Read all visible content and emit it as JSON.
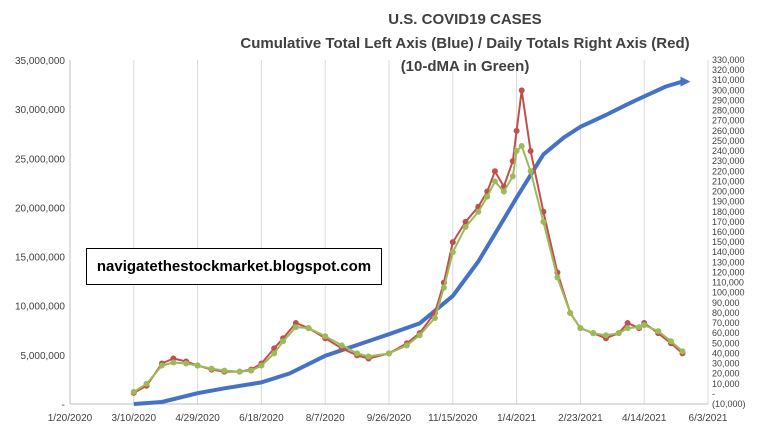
{
  "chart_data": {
    "type": "line",
    "title_lines": [
      "U.S. COVID19 CASES",
      "Cumulative Total Left Axis (Blue) / Daily Totals Right Axis (Red)",
      "(10-dMA in Green)"
    ],
    "watermark": "navigatethestockmarket.blogspot.com",
    "x_ticks": [
      "1/20/2020",
      "3/10/2020",
      "4/29/2020",
      "6/18/2020",
      "8/7/2020",
      "9/26/2020",
      "11/15/2020",
      "1/4/2021",
      "2/23/2021",
      "4/14/2021",
      "6/3/2021"
    ],
    "left_axis": {
      "ylim": [
        0,
        35000000
      ],
      "tick_labels": [
        "-",
        "5,000,000",
        "10,000,000",
        "15,000,000",
        "20,000,000",
        "25,000,000",
        "30,000,000",
        "35,000,000"
      ]
    },
    "right_axis": {
      "ylim": [
        -10000,
        330000
      ],
      "tick_labels": [
        "(10,000)",
        "-",
        "10,000",
        "20,000",
        "30,000",
        "40,000",
        "50,000",
        "60,000",
        "70,000",
        "80,000",
        "90,000",
        "100,000",
        "110,000",
        "120,000",
        "130,000",
        "140,000",
        "150,000",
        "160,000",
        "170,000",
        "180,000",
        "190,000",
        "200,000",
        "210,000",
        "220,000",
        "230,000",
        "240,000",
        "250,000",
        "260,000",
        "270,000",
        "280,000",
        "290,000",
        "300,000",
        "310,000",
        "320,000",
        "330,000"
      ]
    },
    "series": [
      {
        "name": "Cumulative Total",
        "axis": "left",
        "color": "#4472C4",
        "x": [
          "3/10/2020",
          "4/1/2020",
          "4/29/2020",
          "5/20/2020",
          "6/18/2020",
          "7/10/2020",
          "8/7/2020",
          "9/1/2020",
          "9/26/2020",
          "10/20/2020",
          "11/15/2020",
          "12/5/2020",
          "12/25/2020",
          "1/4/2021",
          "1/25/2021",
          "2/10/2021",
          "2/23/2021",
          "3/15/2021",
          "4/1/2021",
          "4/14/2021",
          "5/1/2021",
          "5/14/2021"
        ],
        "values": [
          0,
          200000,
          1100000,
          1600000,
          2200000,
          3100000,
          4900000,
          6000000,
          7100000,
          8200000,
          11000000,
          14500000,
          18800000,
          21000000,
          25400000,
          27100000,
          28200000,
          29400000,
          30500000,
          31300000,
          32300000,
          32800000
        ]
      },
      {
        "name": "Daily Totals",
        "axis": "right",
        "color": "#C0504D",
        "x": [
          "3/10/2020",
          "3/20/2020",
          "4/1/2020",
          "4/10/2020",
          "4/20/2020",
          "4/29/2020",
          "5/10/2020",
          "5/20/2020",
          "6/1/2020",
          "6/10/2020",
          "6/18/2020",
          "6/28/2020",
          "7/5/2020",
          "7/15/2020",
          "7/25/2020",
          "8/7/2020",
          "8/20/2020",
          "9/1/2020",
          "9/10/2020",
          "9/26/2020",
          "10/10/2020",
          "10/20/2020",
          "11/1/2020",
          "11/8/2020",
          "11/15/2020",
          "11/25/2020",
          "12/5/2020",
          "12/12/2020",
          "12/18/2020",
          "12/25/2020",
          "1/1/2021",
          "1/4/2021",
          "1/8/2021",
          "1/15/2021",
          "1/25/2021",
          "2/5/2021",
          "2/15/2021",
          "2/23/2021",
          "3/5/2021",
          "3/15/2021",
          "3/25/2021",
          "4/1/2021",
          "4/10/2021",
          "4/14/2021",
          "4/25/2021",
          "5/5/2021",
          "5/14/2021"
        ],
        "values": [
          1000,
          8000,
          30000,
          35000,
          32000,
          28000,
          24000,
          22000,
          22000,
          24000,
          30000,
          45000,
          55000,
          70000,
          65000,
          55000,
          45000,
          38000,
          35000,
          40000,
          50000,
          60000,
          80000,
          110000,
          150000,
          170000,
          185000,
          200000,
          220000,
          205000,
          230000,
          260000,
          300000,
          240000,
          180000,
          120000,
          80000,
          65000,
          60000,
          55000,
          60000,
          70000,
          65000,
          70000,
          60000,
          50000,
          40000
        ]
      },
      {
        "name": "10-dMA",
        "axis": "right",
        "color": "#9BBB59",
        "x": [
          "3/10/2020",
          "3/20/2020",
          "4/1/2020",
          "4/10/2020",
          "4/20/2020",
          "4/29/2020",
          "5/10/2020",
          "5/20/2020",
          "6/1/2020",
          "6/10/2020",
          "6/18/2020",
          "6/28/2020",
          "7/5/2020",
          "7/15/2020",
          "7/25/2020",
          "8/7/2020",
          "8/20/2020",
          "9/1/2020",
          "9/10/2020",
          "9/26/2020",
          "10/10/2020",
          "10/20/2020",
          "11/1/2020",
          "11/8/2020",
          "11/15/2020",
          "11/25/2020",
          "12/5/2020",
          "12/12/2020",
          "12/18/2020",
          "12/25/2020",
          "1/1/2021",
          "1/4/2021",
          "1/8/2021",
          "1/15/2021",
          "1/25/2021",
          "2/5/2021",
          "2/15/2021",
          "2/23/2021",
          "3/5/2021",
          "3/15/2021",
          "3/25/2021",
          "4/1/2021",
          "4/10/2021",
          "4/14/2021",
          "4/25/2021",
          "5/5/2021",
          "5/14/2021"
        ],
        "values": [
          2000,
          10000,
          28000,
          31000,
          30000,
          28000,
          25000,
          23000,
          22000,
          23000,
          28000,
          40000,
          52000,
          66000,
          65000,
          57000,
          48000,
          40000,
          37000,
          40000,
          48000,
          58000,
          75000,
          105000,
          140000,
          165000,
          180000,
          195000,
          210000,
          200000,
          215000,
          240000,
          245000,
          220000,
          170000,
          115000,
          80000,
          65000,
          60000,
          58000,
          60000,
          65000,
          66000,
          68000,
          62000,
          52000,
          42000
        ]
      }
    ],
    "grid": "vertical"
  }
}
